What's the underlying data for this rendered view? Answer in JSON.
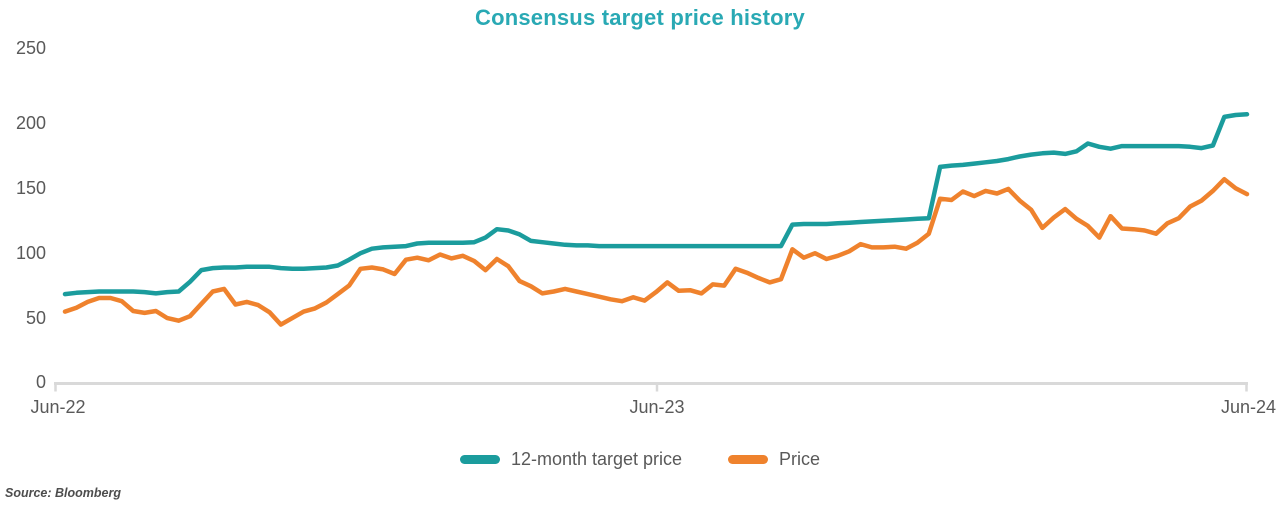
{
  "title": "Consensus target price history",
  "source": "Source: Bloomberg",
  "colors": {
    "title": "#29A9B4",
    "target_line": "#1B9C9D",
    "price_line": "#EF822D",
    "axis_text": "#595959",
    "axis_line": "#D9D9D9",
    "legend_text": "#595959"
  },
  "chart_data": {
    "type": "line",
    "title": "Consensus target price history",
    "xlabel": "",
    "ylabel": "",
    "grid": false,
    "legend_position": "bottom",
    "x_axis": {
      "frequency": "weekly",
      "num_points": 105,
      "tick_labels": [
        "Jun-22",
        "Jun-23",
        "Jun-24"
      ],
      "tick_positions": [
        0,
        52,
        104
      ]
    },
    "y_axis": {
      "ticks": [
        0,
        50,
        100,
        150,
        200,
        250
      ],
      "range": [
        0,
        250
      ]
    },
    "series": [
      {
        "name": "12-month target price",
        "color": "#1B9C9D",
        "values": [
          68.5,
          69.5,
          70,
          70.5,
          70.5,
          70.5,
          70.5,
          70,
          69,
          70,
          70.5,
          78,
          87,
          88.5,
          89,
          89,
          89.5,
          89.5,
          89.5,
          88.5,
          88,
          88,
          88.5,
          89,
          90.5,
          95,
          100,
          103.5,
          104.5,
          105,
          105.5,
          107.5,
          108,
          108,
          108,
          108,
          108.5,
          112,
          118.5,
          117.5,
          114.5,
          109.5,
          108.5,
          107.5,
          106.5,
          106,
          106,
          105.5,
          105.5,
          105.5,
          105.5,
          105.5,
          105.5,
          105.5,
          105.5,
          105.5,
          105.5,
          105.5,
          105.5,
          105.5,
          105.5,
          105.5,
          105.5,
          105.5,
          122,
          122.5,
          122.5,
          122.5,
          123,
          123.5,
          124,
          124.5,
          125,
          125.5,
          126,
          126.5,
          127,
          166.5,
          167.5,
          168,
          169,
          170,
          171,
          172.5,
          174.5,
          176,
          177,
          177.5,
          176.5,
          178.5,
          184.5,
          182,
          180.5,
          182.5,
          182.5,
          182.5,
          182.5,
          182.5,
          182.5,
          182,
          181,
          183,
          205,
          206.5,
          207
        ]
      },
      {
        "name": "Price",
        "color": "#EF822D",
        "values": [
          55,
          58,
          62.5,
          65.5,
          65.5,
          63,
          55.5,
          54,
          55.5,
          50,
          48,
          51.5,
          61,
          70.5,
          72.5,
          60.5,
          62.5,
          60,
          54.5,
          45,
          50,
          55,
          57.5,
          62,
          68.5,
          75,
          88,
          89,
          87.5,
          84,
          95,
          96.5,
          94.5,
          99,
          96,
          98,
          94,
          87,
          95.5,
          90,
          78.5,
          74.5,
          69,
          70.5,
          72.5,
          70.5,
          68.5,
          66.5,
          64.5,
          63,
          66,
          63.5,
          70,
          77.5,
          71,
          71.5,
          69,
          76,
          75,
          88,
          85,
          81,
          77.5,
          80,
          103,
          96.5,
          100,
          95.5,
          98,
          101.5,
          107,
          104.5,
          104.5,
          105,
          103.5,
          108,
          115,
          142,
          141,
          147.5,
          144,
          148,
          146,
          149.5,
          140.5,
          133.5,
          119.5,
          127.5,
          134,
          126.5,
          121,
          112,
          128.5,
          119,
          118.5,
          117.5,
          115,
          123,
          127,
          136,
          140.5,
          148,
          157,
          150,
          145.5
        ]
      }
    ]
  }
}
